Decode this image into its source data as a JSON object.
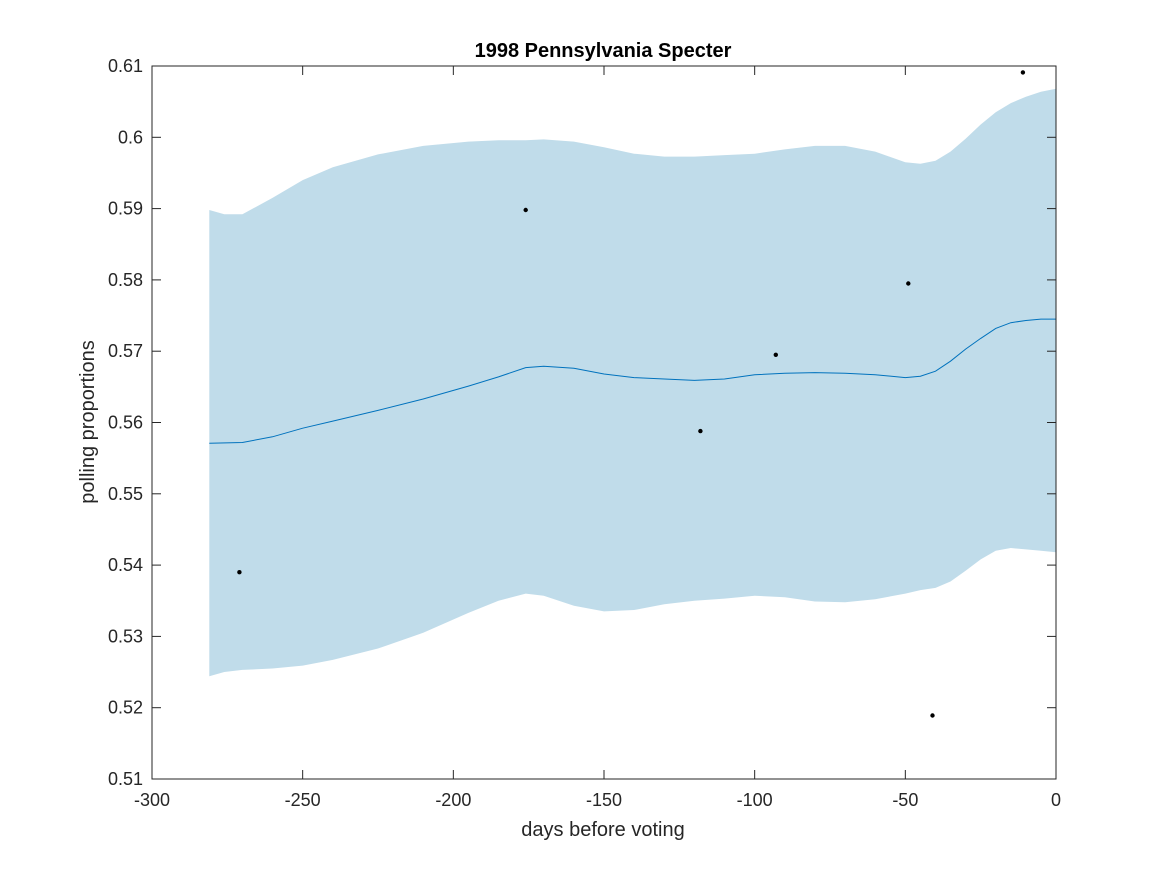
{
  "chart_data": {
    "type": "line",
    "title": "1998 Pennsylvania Specter",
    "xlabel": "days before voting",
    "ylabel": "polling proportions",
    "xlim": [
      -300,
      0
    ],
    "ylim": [
      0.51,
      0.61
    ],
    "xticks": [
      -300,
      -250,
      -200,
      -150,
      -100,
      -50,
      0
    ],
    "xtick_labels": [
      "-300",
      "-250",
      "-200",
      "-150",
      "-100",
      "-50",
      "0"
    ],
    "yticks": [
      0.51,
      0.52,
      0.53,
      0.54,
      0.55,
      0.56,
      0.57,
      0.58,
      0.59,
      0.6,
      0.61
    ],
    "ytick_labels": [
      "0.51",
      "0.52",
      "0.53",
      "0.54",
      "0.55",
      "0.56",
      "0.57",
      "0.58",
      "0.59",
      "0.6",
      "0.61"
    ],
    "grid": false,
    "colors": {
      "band": "#c0dcea",
      "mean_line": "#0072bd",
      "points": "#000000",
      "axes": "#262626"
    },
    "band": {
      "x": [
        -281,
        -276,
        -270,
        -260,
        -250,
        -240,
        -225,
        -210,
        -195,
        -185,
        -176,
        -170,
        -160,
        -150,
        -140,
        -130,
        -120,
        -110,
        -100,
        -90,
        -80,
        -70,
        -60,
        -50,
        -45,
        -40,
        -35,
        -30,
        -25,
        -20,
        -15,
        -10,
        -5,
        0
      ],
      "upper": [
        0.5898,
        0.5892,
        0.5892,
        0.5915,
        0.594,
        0.5958,
        0.5976,
        0.5988,
        0.5994,
        0.5996,
        0.5996,
        0.5997,
        0.5994,
        0.5986,
        0.5977,
        0.5973,
        0.5973,
        0.5975,
        0.5977,
        0.5983,
        0.5988,
        0.5988,
        0.598,
        0.5965,
        0.5963,
        0.5967,
        0.598,
        0.5998,
        0.6018,
        0.6035,
        0.6048,
        0.6057,
        0.6064,
        0.6068
      ],
      "lower": [
        0.5244,
        0.525,
        0.5253,
        0.5255,
        0.5259,
        0.5267,
        0.5283,
        0.5305,
        0.5333,
        0.535,
        0.536,
        0.5357,
        0.5343,
        0.5335,
        0.5337,
        0.5345,
        0.535,
        0.5353,
        0.5357,
        0.5355,
        0.5349,
        0.5348,
        0.5352,
        0.536,
        0.5365,
        0.5368,
        0.5377,
        0.5392,
        0.5408,
        0.542,
        0.5424,
        0.5422,
        0.542,
        0.5418
      ]
    },
    "mean": {
      "x": [
        -281,
        -270,
        -260,
        -250,
        -240,
        -225,
        -210,
        -195,
        -185,
        -176,
        -170,
        -160,
        -150,
        -140,
        -130,
        -120,
        -110,
        -100,
        -90,
        -80,
        -70,
        -60,
        -50,
        -45,
        -40,
        -35,
        -30,
        -25,
        -20,
        -15,
        -10,
        -5,
        0
      ],
      "y": [
        0.5571,
        0.5572,
        0.558,
        0.5592,
        0.5602,
        0.5617,
        0.5633,
        0.5651,
        0.5664,
        0.5677,
        0.5679,
        0.5676,
        0.5668,
        0.5663,
        0.5661,
        0.5659,
        0.5661,
        0.5667,
        0.5669,
        0.567,
        0.5669,
        0.5667,
        0.5663,
        0.5665,
        0.5672,
        0.5686,
        0.5703,
        0.5718,
        0.5732,
        0.574,
        0.5743,
        0.5745,
        0.5745
      ]
    },
    "points": {
      "x": [
        -271,
        -176,
        -118,
        -93,
        -49,
        -41,
        -11
      ],
      "y": [
        0.539,
        0.5898,
        0.5588,
        0.5695,
        0.5795,
        0.5189,
        0.6091
      ]
    }
  }
}
